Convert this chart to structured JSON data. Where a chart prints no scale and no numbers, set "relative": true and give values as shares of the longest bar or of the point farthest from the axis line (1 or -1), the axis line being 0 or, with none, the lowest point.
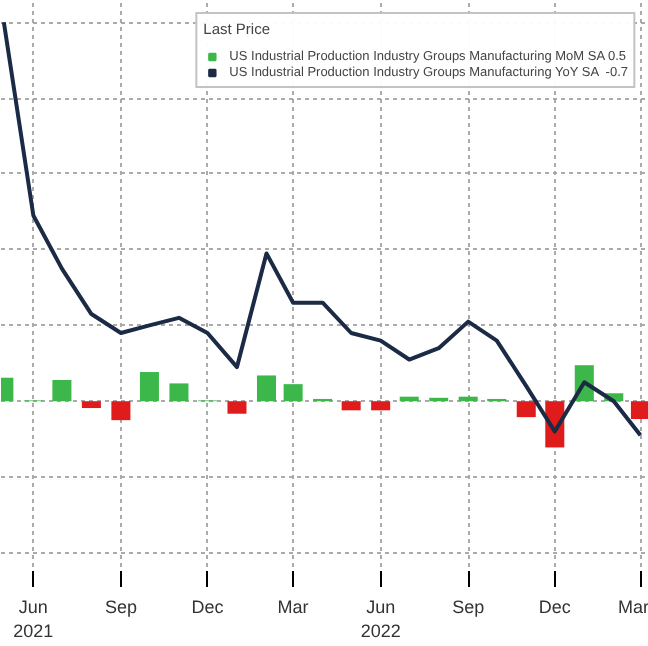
{
  "chart_data": {
    "type": "bar",
    "relative": true,
    "legend_title": "Last Price",
    "legend": "top right",
    "grid": true,
    "x": [
      "2021-05",
      "2021-06",
      "2021-07",
      "2021-08",
      "2021-09",
      "2021-10",
      "2021-11",
      "2021-12",
      "2022-01",
      "2022-02",
      "2022-03",
      "2022-04",
      "2022-05",
      "2022-06",
      "2022-07",
      "2022-08",
      "2022-09",
      "2022-10",
      "2022-11",
      "2022-12",
      "2023-01",
      "2023-02",
      "2023-03"
    ],
    "xlim": [
      "2021-04-28",
      "2023-03-10"
    ],
    "xticks": [
      {
        "value": "2021-06",
        "label": "Jun\n2021"
      },
      {
        "value": "2021-09",
        "label": "Sep"
      },
      {
        "value": "2021-12",
        "label": "Dec"
      },
      {
        "value": "2022-03",
        "label": "Mar"
      },
      {
        "value": "2022-06",
        "label": "Jun\n2022"
      },
      {
        "value": "2022-09",
        "label": "Sep"
      },
      {
        "value": "2022-12",
        "label": "Dec"
      },
      {
        "value": "2023-03",
        "label": "Mar"
      }
    ],
    "series": [
      {
        "name": "US Industrial Production Industry Groups Manufacturing MoM SA 0.5",
        "color": "#3cb84a",
        "colors": [
          "#3cb84a",
          "#3cb84a",
          "#3cb84a",
          "#e01b1b",
          "#e01b1b",
          "#3cb84a",
          "#3cb84a",
          "#3cb84a",
          "#e01b1b",
          "#3cb84a",
          "#3cb84a",
          "#3cb84a",
          "#e01b1b",
          "#e01b1b",
          "#3cb84a",
          "#3cb84a",
          "#3cb84a",
          "#3cb84a",
          "#e01b1b",
          "#e01b1b",
          "#3cb84a",
          "#3cb84a",
          "#e01b1b"
        ],
        "values": [
          0.062,
          0.002,
          0.056,
          -0.018,
          -0.05,
          0.077,
          0.047,
          0.002,
          -0.033,
          0.068,
          0.045,
          0.006,
          -0.024,
          -0.024,
          0.012,
          0.009,
          0.012,
          0.006,
          -0.042,
          -0.122,
          0.095,
          0.021,
          -0.047
        ]
      },
      {
        "name": "US Industrial Production Industry Groups Manufacturing YoY SA  -0.7",
        "type": "line",
        "color": "#1b2a45",
        "values": [
          1,
          0.49,
          0.35,
          0.23,
          0.18,
          0.2,
          0.22,
          0.18,
          0.09,
          0.39,
          0.26,
          0.26,
          0.18,
          0.16,
          0.11,
          0.14,
          0.21,
          0.16,
          0.04,
          -0.08,
          0.05,
          0.0,
          -0.09
        ]
      }
    ]
  }
}
